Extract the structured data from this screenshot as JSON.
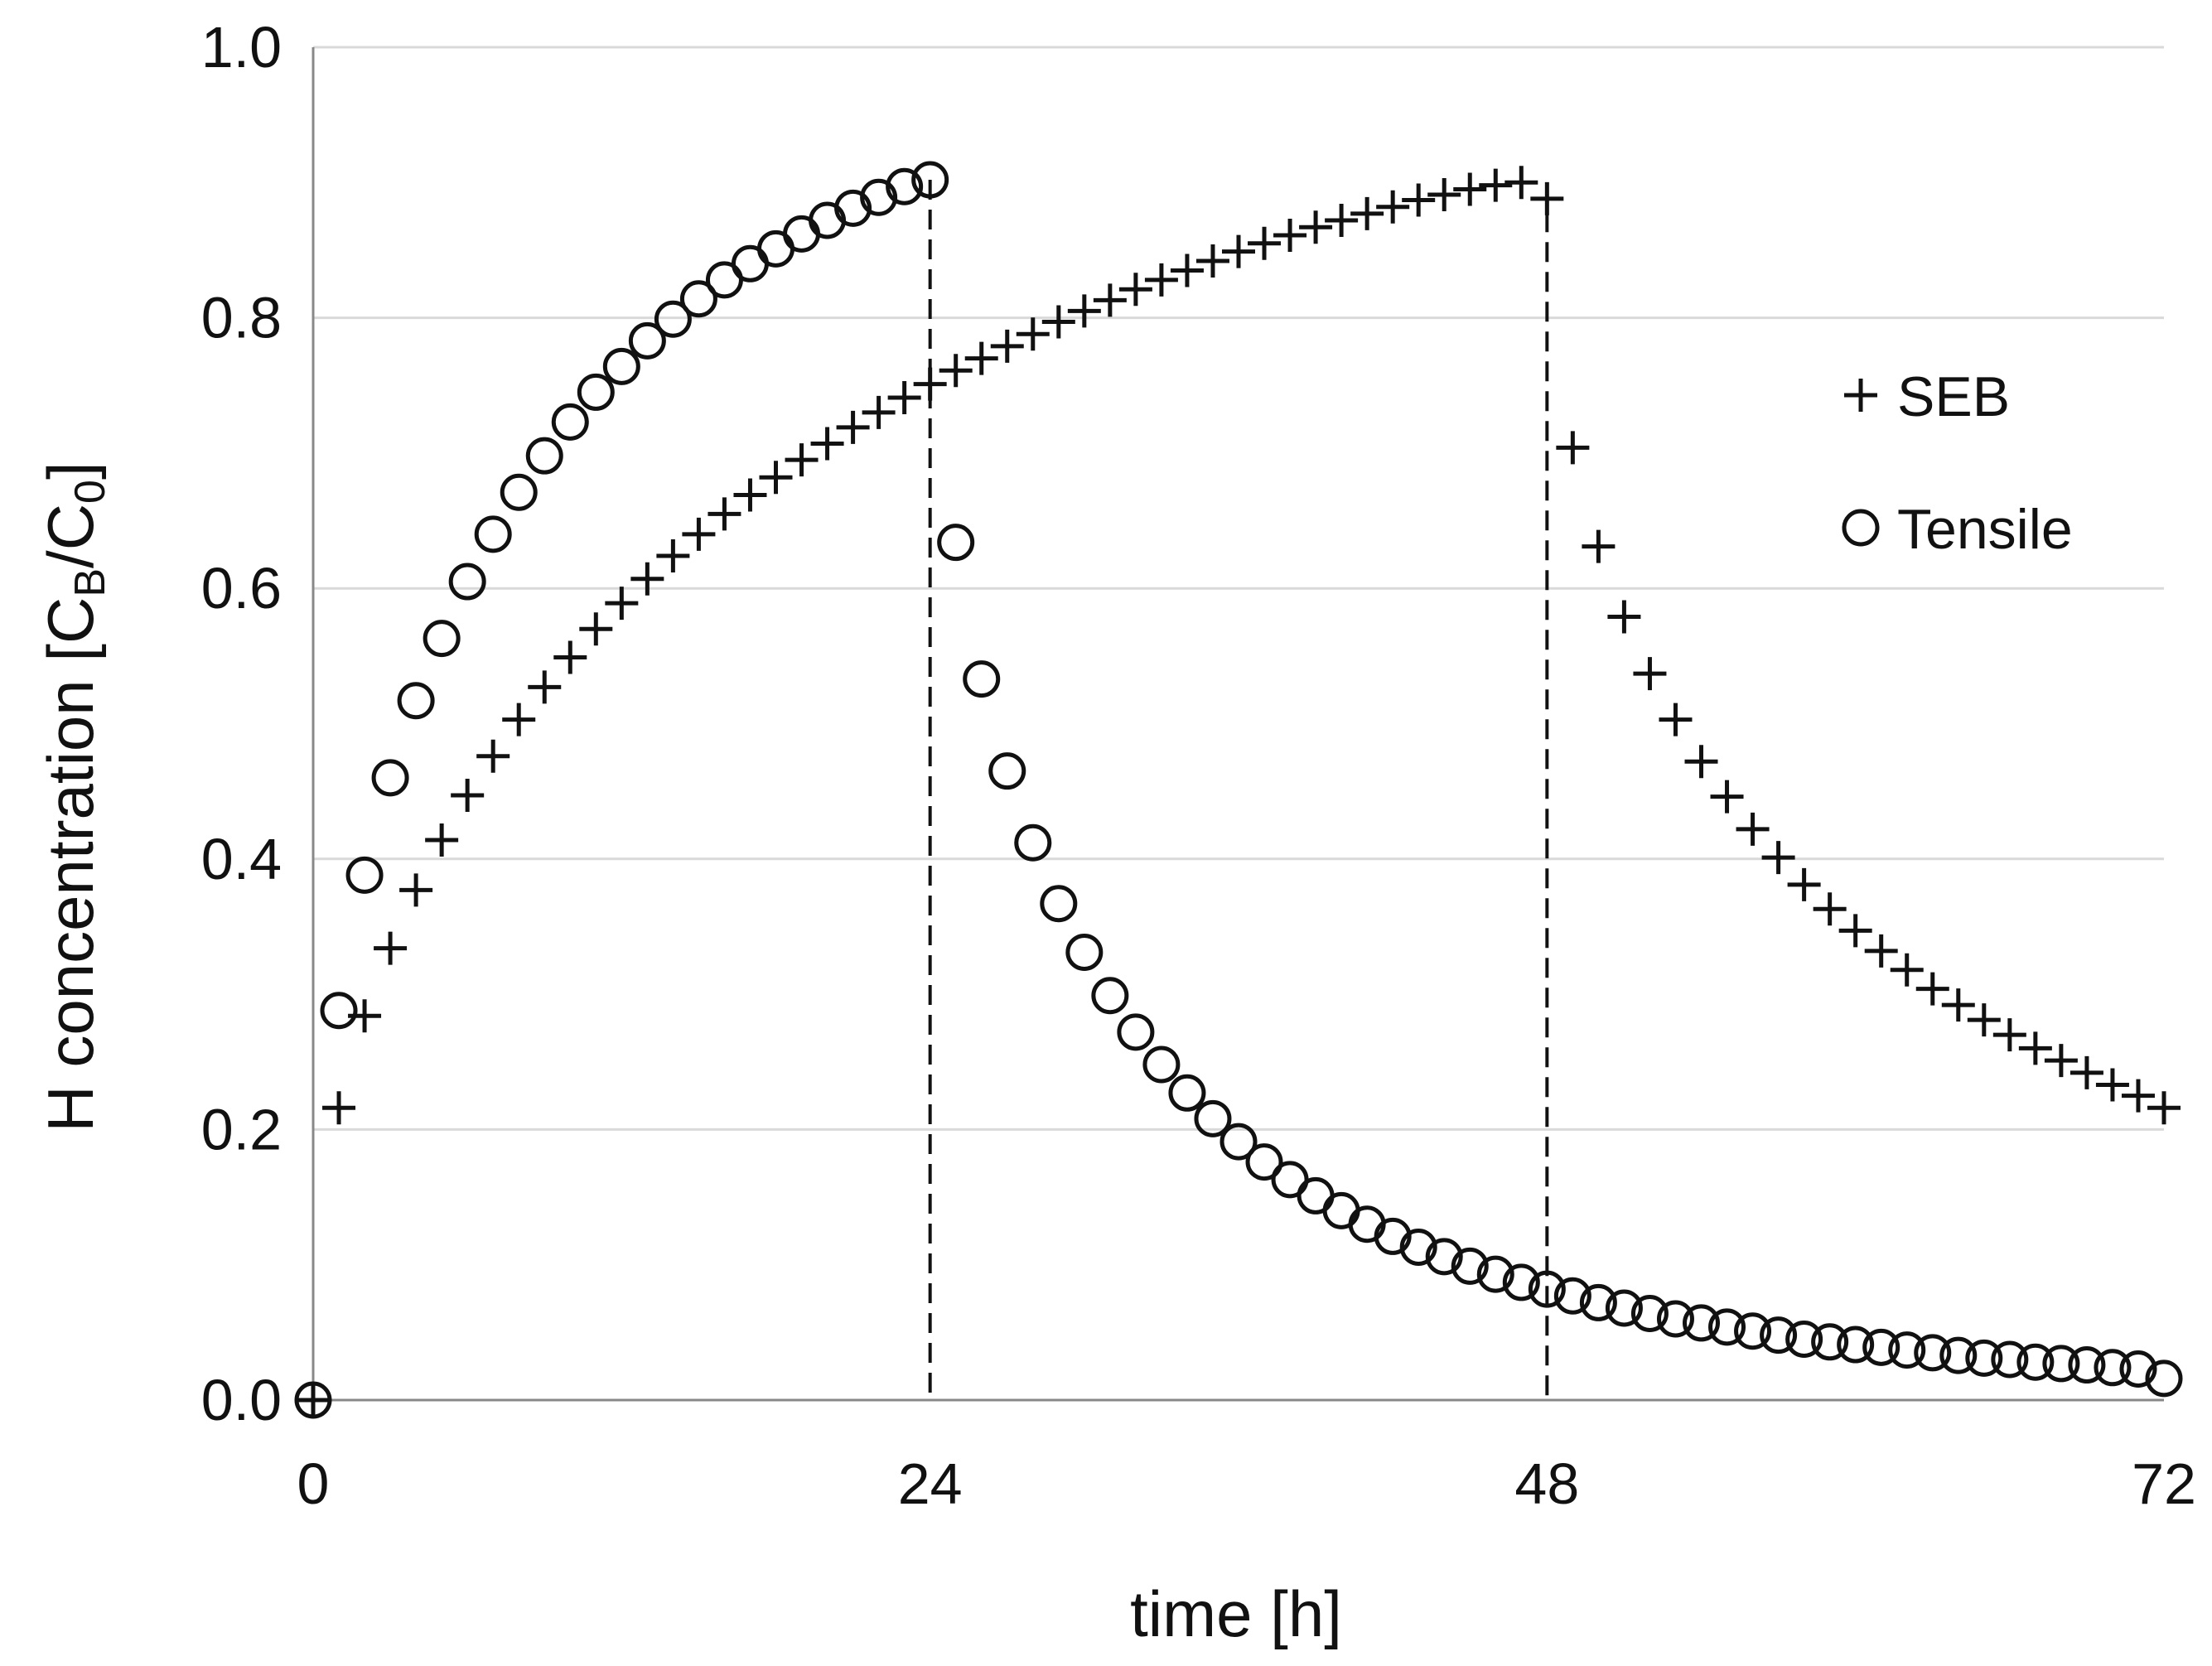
{
  "chart_data": {
    "type": "scatter",
    "title": "",
    "xlabel": "time [h]",
    "ylabel": {
      "prefix": "H concentration [C",
      "sub1": "B",
      "middle": "/C",
      "sub2": "0",
      "suffix": "]"
    },
    "xlim": [
      0,
      72
    ],
    "ylim": [
      0,
      1.0
    ],
    "xticks": [
      0,
      24,
      48,
      72
    ],
    "xtick_labels": [
      "0",
      "24",
      "48",
      "72"
    ],
    "yticks": [
      0,
      0.2,
      0.4,
      0.6,
      0.8,
      1.0
    ],
    "ytick_labels": [
      "0.0",
      "0.2",
      "0.4",
      "0.6",
      "0.8",
      "1.0"
    ],
    "grid": "horizontal",
    "legend_position": "right",
    "vertical_lines": [
      24,
      48
    ],
    "colors": {
      "marker": "#111111",
      "grid": "#d9d9d9",
      "axis": "#888888",
      "dashed": "#111111"
    },
    "series": [
      {
        "name": "SEB",
        "marker": "plus",
        "x": [
          0,
          1,
          2,
          3,
          4,
          5,
          6,
          7,
          8,
          9,
          10,
          11,
          12,
          13,
          14,
          15,
          16,
          17,
          18,
          19,
          20,
          21,
          22,
          23,
          24,
          25,
          26,
          27,
          28,
          29,
          30,
          31,
          32,
          33,
          34,
          35,
          36,
          37,
          38,
          39,
          40,
          41,
          42,
          43,
          44,
          45,
          46,
          47,
          48,
          49,
          50,
          51,
          52,
          53,
          54,
          55,
          56,
          57,
          58,
          59,
          60,
          61,
          62,
          63,
          64,
          65,
          66,
          67,
          68,
          69,
          70,
          71,
          72
        ],
        "y": [
          0.0,
          0.216,
          0.284,
          0.334,
          0.377,
          0.414,
          0.447,
          0.476,
          0.503,
          0.527,
          0.549,
          0.57,
          0.589,
          0.607,
          0.624,
          0.64,
          0.655,
          0.669,
          0.682,
          0.695,
          0.707,
          0.719,
          0.73,
          0.741,
          0.751,
          0.761,
          0.77,
          0.779,
          0.788,
          0.797,
          0.805,
          0.813,
          0.821,
          0.828,
          0.835,
          0.842,
          0.849,
          0.855,
          0.861,
          0.867,
          0.872,
          0.877,
          0.882,
          0.887,
          0.891,
          0.895,
          0.898,
          0.9,
          0.888,
          0.704,
          0.631,
          0.579,
          0.537,
          0.503,
          0.472,
          0.446,
          0.422,
          0.401,
          0.381,
          0.363,
          0.347,
          0.332,
          0.318,
          0.304,
          0.292,
          0.281,
          0.27,
          0.26,
          0.251,
          0.242,
          0.233,
          0.225,
          0.216
        ]
      },
      {
        "name": "Tensile",
        "marker": "circle",
        "x": [
          0,
          1,
          2,
          3,
          4,
          5,
          6,
          7,
          8,
          9,
          10,
          11,
          12,
          13,
          14,
          15,
          16,
          17,
          18,
          19,
          20,
          21,
          22,
          23,
          24,
          25,
          26,
          27,
          28,
          29,
          30,
          31,
          32,
          33,
          34,
          35,
          36,
          37,
          38,
          39,
          40,
          41,
          42,
          43,
          44,
          45,
          46,
          47,
          48,
          49,
          50,
          51,
          52,
          53,
          54,
          55,
          56,
          57,
          58,
          59,
          60,
          61,
          62,
          63,
          64,
          65,
          66,
          67,
          68,
          69,
          70,
          71,
          72
        ],
        "y": [
          0.0,
          0.288,
          0.388,
          0.46,
          0.517,
          0.563,
          0.605,
          0.64,
          0.671,
          0.698,
          0.723,
          0.745,
          0.764,
          0.783,
          0.799,
          0.814,
          0.828,
          0.84,
          0.851,
          0.862,
          0.872,
          0.881,
          0.889,
          0.897,
          0.902,
          0.634,
          0.533,
          0.465,
          0.412,
          0.367,
          0.331,
          0.299,
          0.272,
          0.248,
          0.227,
          0.208,
          0.191,
          0.176,
          0.163,
          0.151,
          0.14,
          0.13,
          0.121,
          0.113,
          0.106,
          0.099,
          0.093,
          0.087,
          0.082,
          0.077,
          0.072,
          0.068,
          0.064,
          0.06,
          0.057,
          0.054,
          0.051,
          0.048,
          0.045,
          0.043,
          0.041,
          0.039,
          0.037,
          0.035,
          0.033,
          0.031,
          0.03,
          0.028,
          0.027,
          0.026,
          0.024,
          0.023,
          0.016
        ]
      }
    ]
  }
}
